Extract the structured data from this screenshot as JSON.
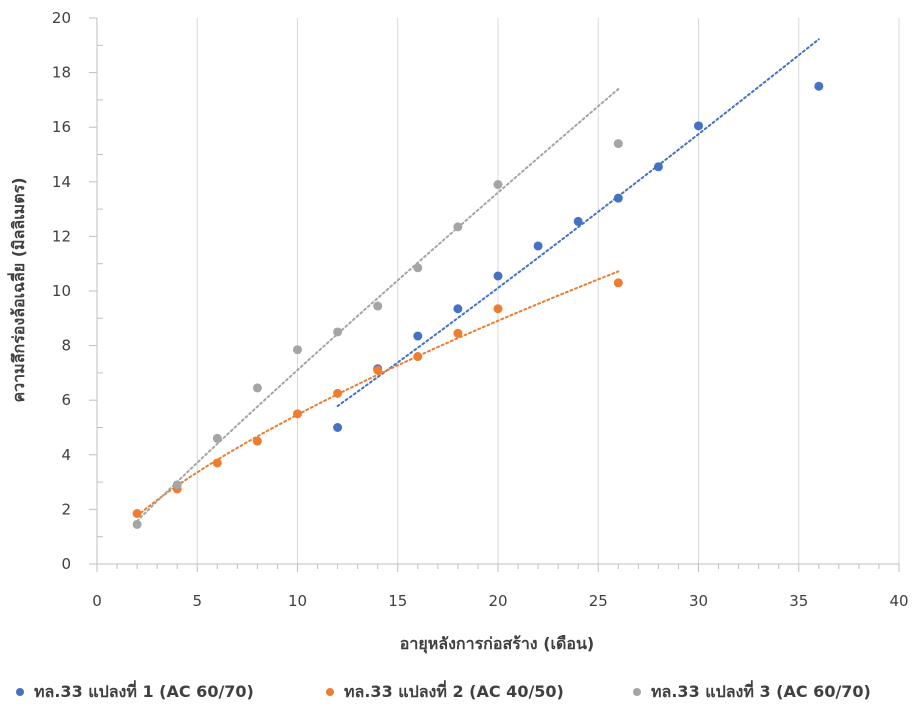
{
  "chart_data": {
    "type": "scatter",
    "xlabel": "อายุหลังการก่อสร้าง (เดือน)",
    "ylabel": "ความลึกร่องล้อเฉลี่ย (มิลลิเมตร)",
    "xlim": [
      0,
      40
    ],
    "ylim": [
      0,
      20
    ],
    "x_ticks": [
      "0",
      "5",
      "10",
      "15",
      "20",
      "25",
      "30",
      "35",
      "40"
    ],
    "y_ticks": [
      "0",
      "2",
      "4",
      "6",
      "8",
      "10",
      "12",
      "14",
      "16",
      "18",
      "20"
    ],
    "grid": "vertical",
    "trendline": "dotted power-fit per series",
    "legend_position": "bottom",
    "series": [
      {
        "name": "ทล.33 แปลงที่ 1 (AC 60/70)",
        "color": "#4472C4",
        "points": [
          [
            12,
            5.0
          ],
          [
            14,
            7.15
          ],
          [
            16,
            8.35
          ],
          [
            18,
            9.35
          ],
          [
            20,
            10.55
          ],
          [
            22,
            11.65
          ],
          [
            24,
            12.55
          ],
          [
            26,
            13.4
          ],
          [
            28,
            14.55
          ],
          [
            30,
            16.05
          ],
          [
            36,
            17.5
          ]
        ]
      },
      {
        "name": "ทล.33 แปลงที่ 2 (AC 40/50)",
        "color": "#ED7D31",
        "points": [
          [
            2,
            1.85
          ],
          [
            4,
            2.75
          ],
          [
            6,
            3.7
          ],
          [
            8,
            4.5
          ],
          [
            10,
            5.5
          ],
          [
            12,
            6.25
          ],
          [
            14,
            7.1
          ],
          [
            16,
            7.6
          ],
          [
            18,
            8.45
          ],
          [
            20,
            9.35
          ],
          [
            26,
            10.3
          ]
        ]
      },
      {
        "name": "ทล.33 แปลงที่ 3 (AC 60/70)",
        "color": "#A5A5A5",
        "points": [
          [
            2,
            1.45
          ],
          [
            4,
            2.9
          ],
          [
            6,
            4.6
          ],
          [
            8,
            6.45
          ],
          [
            10,
            7.85
          ],
          [
            12,
            8.5
          ],
          [
            14,
            9.45
          ],
          [
            16,
            10.85
          ],
          [
            18,
            12.35
          ],
          [
            20,
            13.9
          ],
          [
            26,
            15.4
          ]
        ]
      }
    ]
  }
}
